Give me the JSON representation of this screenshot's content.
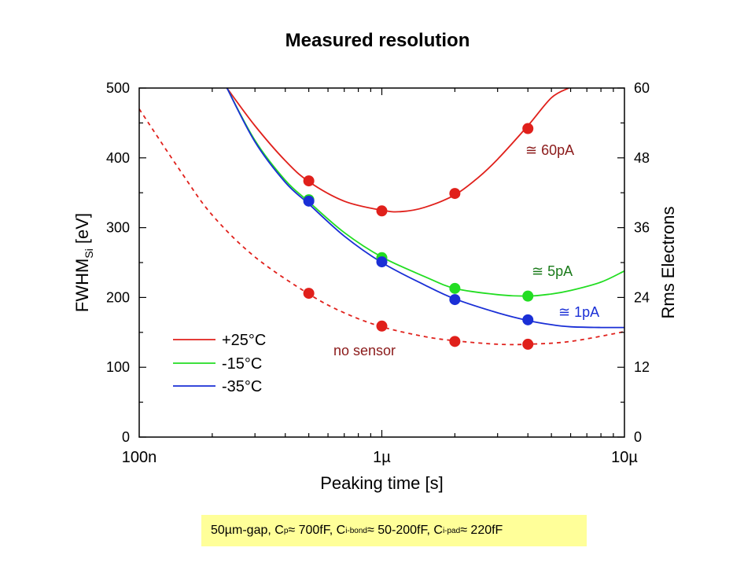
{
  "title": "Measured resolution",
  "chart_data": {
    "type": "line",
    "title": "Measured resolution",
    "xlabel": "Peaking time [s]",
    "x_scale": "log",
    "xlim": [
      1e-07,
      1e-05
    ],
    "x_ticks": [
      {
        "value": 1e-07,
        "label": "100n"
      },
      {
        "value": 1e-06,
        "label": "1µ"
      },
      {
        "value": 1e-05,
        "label": "10µ"
      }
    ],
    "ylabel_left": {
      "main": "FWHM",
      "sub": "Si",
      "suffix": " [eV]"
    },
    "ylim_left": [
      0,
      500
    ],
    "y_ticks_left": [
      0,
      100,
      200,
      300,
      400,
      500
    ],
    "ylabel_right": "Rms Electrons",
    "ylim_right": [
      0,
      60
    ],
    "y_ticks_right": [
      0,
      12,
      24,
      36,
      48,
      60
    ],
    "legend": {
      "placement": "lower-left",
      "entries": [
        {
          "label": "+25°C",
          "color": "#e0201b"
        },
        {
          "label": "-15°C",
          "color": "#22dd22"
        },
        {
          "label": "-35°C",
          "color": "#1a2fd6"
        }
      ]
    },
    "series": [
      {
        "name": "+25°C",
        "color": "#e0201b",
        "style": "solid",
        "curve_x": [
          2.3e-07,
          3e-07,
          4e-07,
          5e-07,
          7e-07,
          1e-06,
          1.2e-06,
          1.5e-06,
          2e-06,
          2.5e-06,
          3e-06,
          4e-06,
          5e-06,
          5.9e-06
        ],
        "curve_y": [
          500,
          446,
          396,
          366,
          338,
          325,
          323,
          329,
          347,
          372,
          398,
          446,
          486,
          500
        ],
        "points_x": [
          5e-07,
          1e-06,
          2e-06,
          4e-06
        ],
        "points_y": [
          367,
          324,
          349,
          442
        ],
        "annotation": "≅ 60pA",
        "annotation_color": "#8b1a1a"
      },
      {
        "name": "-15°C",
        "color": "#22dd22",
        "style": "solid",
        "curve_x": [
          2.3e-07,
          3e-07,
          4e-07,
          5e-07,
          7e-07,
          1e-06,
          1.5e-06,
          2e-06,
          3e-06,
          4e-06,
          5e-06,
          6e-06,
          8e-06,
          1e-05
        ],
        "curve_y": [
          500,
          425,
          368,
          337,
          293,
          258,
          230,
          213,
          204,
          202,
          205,
          210,
          222,
          238
        ],
        "points_x": [
          5e-07,
          1e-06,
          2e-06,
          4e-06
        ],
        "points_y": [
          340,
          257,
          213,
          202
        ],
        "annotation": "≅ 5pA",
        "annotation_color": "#1a7a1a"
      },
      {
        "name": "-35°C",
        "color": "#1a2fd6",
        "style": "solid",
        "curve_x": [
          2.3e-07,
          3e-07,
          4e-07,
          5e-07,
          7e-07,
          1e-06,
          1.5e-06,
          2e-06,
          3e-06,
          4e-06,
          5e-06,
          6e-06,
          8e-06,
          1e-05
        ],
        "curve_y": [
          500,
          423,
          365,
          334,
          288,
          250,
          218,
          198,
          178,
          167,
          161,
          158,
          157,
          157
        ],
        "points_x": [
          5e-07,
          1e-06,
          2e-06,
          4e-06
        ],
        "points_y": [
          338,
          251,
          197,
          168
        ],
        "annotation": "≅ 1pA",
        "annotation_color": "#1a2fd6"
      },
      {
        "name": "no sensor",
        "color": "#e0201b",
        "style": "dashed",
        "curve_x": [
          1e-07,
          1.5e-07,
          2e-07,
          3e-07,
          5e-07,
          7e-07,
          1e-06,
          1.5e-06,
          2e-06,
          3e-06,
          4e-06,
          6e-06,
          1e-05
        ],
        "curve_y": [
          470,
          378,
          318,
          258,
          205,
          178,
          158,
          144,
          138,
          133,
          133,
          137,
          151
        ],
        "points_x": [
          5e-07,
          1e-06,
          2e-06,
          4e-06
        ],
        "points_y": [
          206,
          159,
          137,
          133
        ],
        "annotation": "no sensor",
        "annotation_color": "#8b1a1a"
      }
    ]
  },
  "caption": {
    "parts": [
      {
        "t": "50µm-gap, C"
      },
      {
        "sub": "p"
      },
      {
        "t": " ≈ 700fF, C"
      },
      {
        "sub": "i-bond"
      },
      {
        "t": " ≈ 50-200fF, C"
      },
      {
        "sub": "i-pad"
      },
      {
        "t": " ≈ 220fF"
      }
    ]
  }
}
